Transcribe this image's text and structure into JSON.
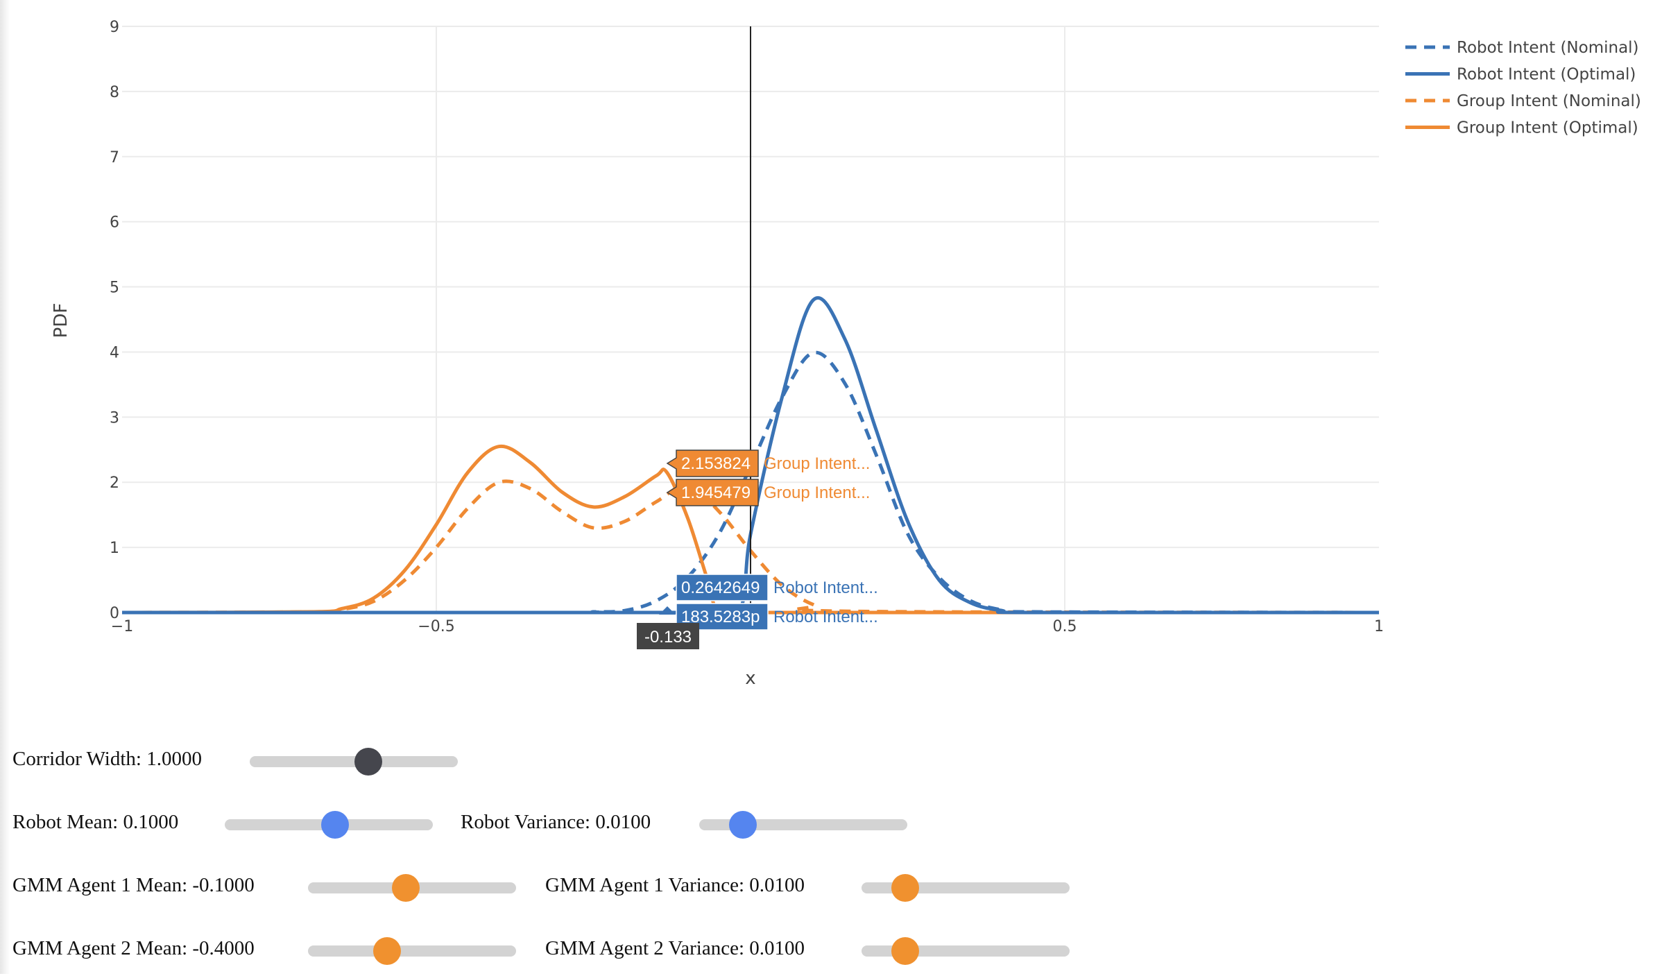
{
  "chart_data": {
    "type": "line",
    "title": "",
    "xlabel": "x",
    "ylabel": "PDF",
    "xlim": [
      -1,
      1
    ],
    "ylim": [
      0,
      9
    ],
    "x_ticks": [
      -1,
      -0.5,
      0,
      0.5,
      1
    ],
    "x_tick_labels": [
      "−1",
      "−0.5",
      "",
      "0.5",
      "1"
    ],
    "y_ticks": [
      0,
      1,
      2,
      3,
      4,
      5,
      6,
      7,
      8,
      9
    ],
    "grid": true,
    "legend_position": "top-right",
    "spike_line_x": 0,
    "series": [
      {
        "name": "Robot Intent (Nominal)",
        "color": "#3a73b5",
        "dash": "dash",
        "x": [
          -1,
          -0.3,
          -0.25,
          -0.2,
          -0.15,
          -0.1,
          -0.05,
          0,
          0.05,
          0.1,
          0.15,
          0.2,
          0.25,
          0.3,
          0.35,
          0.4,
          0.45,
          1
        ],
        "y": [
          0,
          0,
          0.01,
          0.03,
          0.18,
          0.54,
          1.21,
          2.24,
          3.3,
          3.99,
          3.52,
          2.42,
          1.21,
          0.54,
          0.18,
          0.04,
          0.01,
          0
        ]
      },
      {
        "name": "Robot Intent (Optimal)",
        "color": "#3a73b5",
        "dash": "solid",
        "x": [
          -1,
          -0.1,
          -0.02,
          0,
          0.05,
          0.1,
          0.15,
          0.2,
          0.25,
          0.3,
          0.35,
          0.4,
          0.45,
          1
        ],
        "y": [
          0,
          0,
          0,
          1.2,
          3.3,
          4.8,
          4.2,
          2.8,
          1.4,
          0.5,
          0.15,
          0.03,
          0,
          0
        ]
      },
      {
        "name": "Group Intent (Nominal)",
        "color": "#ef8a33",
        "dash": "dash",
        "x": [
          -1,
          -0.7,
          -0.65,
          -0.6,
          -0.55,
          -0.5,
          -0.45,
          -0.4,
          -0.35,
          -0.3,
          -0.25,
          -0.2,
          -0.15,
          -0.1,
          -0.05,
          0,
          0.05,
          0.1,
          0.15,
          1
        ],
        "y": [
          0,
          0.01,
          0.05,
          0.17,
          0.5,
          1.0,
          1.6,
          2.0,
          1.9,
          1.55,
          1.3,
          1.4,
          1.7,
          1.95,
          1.55,
          0.95,
          0.42,
          0.12,
          0.02,
          0
        ]
      },
      {
        "name": "Group Intent (Optimal)",
        "color": "#ef8a33",
        "dash": "solid",
        "x": [
          -1,
          -0.7,
          -0.65,
          -0.6,
          -0.55,
          -0.5,
          -0.45,
          -0.4,
          -0.35,
          -0.3,
          -0.25,
          -0.2,
          -0.15,
          -0.133,
          -0.1,
          -0.07,
          -0.05,
          0,
          1
        ],
        "y": [
          0,
          0.01,
          0.06,
          0.22,
          0.65,
          1.35,
          2.15,
          2.55,
          2.3,
          1.85,
          1.62,
          1.78,
          2.1,
          2.15,
          1.45,
          0.55,
          0,
          0,
          0
        ]
      }
    ],
    "hover": {
      "x_label": "-0.133",
      "items": [
        {
          "value": "2.153824",
          "name": "Group Intent...",
          "color": "#ef8a33"
        },
        {
          "value": "1.945479",
          "name": "Group Intent...",
          "color": "#ef8a33"
        },
        {
          "value": "0.2642649",
          "name": "Robot Intent...",
          "color": "#3a73b5"
        },
        {
          "value": "183.5283p",
          "name": "Robot Intent...",
          "color": "#3a73b5"
        }
      ]
    }
  },
  "controls": {
    "corridor_width": {
      "label": "Corridor Width: 1.0000",
      "fraction": 0.57,
      "color": "#45464d"
    },
    "robot_mean": {
      "label": "Robot Mean: 0.1000",
      "fraction": 0.53,
      "color": "#5585ef"
    },
    "robot_variance": {
      "label": "Robot Variance: 0.0100",
      "fraction": 0.21,
      "color": "#5585ef"
    },
    "gmm1_mean": {
      "label": "GMM Agent 1 Mean: -0.1000",
      "fraction": 0.47,
      "color": "#f0912f"
    },
    "gmm1_variance": {
      "label": "GMM Agent 1 Variance: 0.0100",
      "fraction": 0.21,
      "color": "#f0912f"
    },
    "gmm2_mean": {
      "label": "GMM Agent 2 Mean: -0.4000",
      "fraction": 0.38,
      "color": "#f0912f"
    },
    "gmm2_variance": {
      "label": "GMM Agent 2 Variance: 0.0100",
      "fraction": 0.21,
      "color": "#f0912f"
    }
  }
}
